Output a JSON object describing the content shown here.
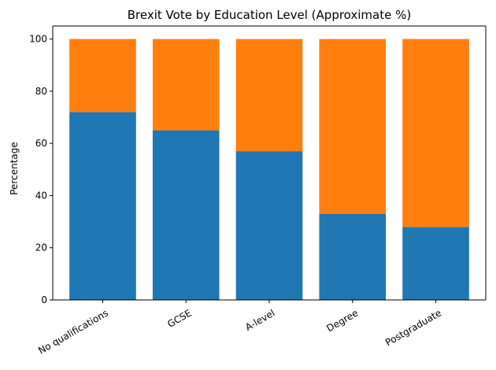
{
  "chart_data": {
    "type": "bar",
    "stacked": true,
    "title": "Brexit Vote by Education Level (Approximate %)",
    "xlabel": "",
    "ylabel": "Percentage",
    "categories": [
      "No qualifications",
      "GCSE",
      "A-level",
      "Degree",
      "Postgraduate"
    ],
    "series": [
      {
        "values": [
          72,
          65,
          57,
          33,
          28
        ],
        "color": "#1f77b4"
      },
      {
        "values": [
          28,
          35,
          43,
          67,
          72
        ],
        "color": "#ff7f0e"
      }
    ],
    "ylim": [
      0,
      105
    ],
    "yticks": [
      0,
      20,
      40,
      60,
      80,
      100
    ],
    "legend": "none",
    "grid": false
  }
}
